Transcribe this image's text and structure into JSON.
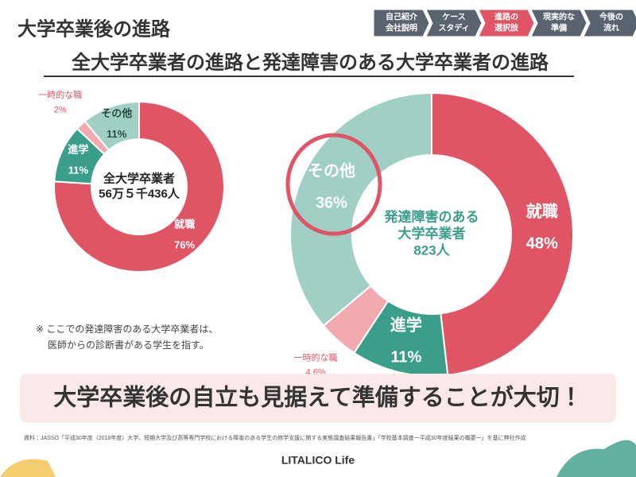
{
  "header": {
    "title": "大学卒業後の進路",
    "nav": [
      [
        "自己紹介",
        "会社説明"
      ],
      [
        "ケース",
        "スタディ"
      ],
      [
        "進路の",
        "選択肢"
      ],
      [
        "現実的な",
        "準備"
      ],
      [
        "今後の",
        "流れ"
      ]
    ],
    "nav_active": 2
  },
  "subtitle": "全大学卒業者の進路と発達障害のある大学卒業者の進路",
  "chart_data": [
    {
      "type": "pie",
      "donut": true,
      "center_label": [
        "全大学卒業者",
        "56万５千436人"
      ],
      "categories": [
        "就職",
        "進学",
        "一時的な職",
        "その他"
      ],
      "values": [
        76,
        11,
        2,
        11
      ],
      "value_labels": [
        "76%",
        "11%",
        "2%",
        "11%"
      ],
      "colors": [
        "#e05565",
        "#3a9e8a",
        "#f2a9b0",
        "#9fcfc5"
      ]
    },
    {
      "type": "pie",
      "donut": true,
      "center_label": [
        "発達障害のある",
        "大学卒業者",
        "823人"
      ],
      "categories": [
        "就職",
        "進学",
        "一時的な職",
        "その他"
      ],
      "values": [
        48,
        11,
        4.6,
        36
      ],
      "value_labels": [
        "48%",
        "11%",
        "4.6%",
        "36%"
      ],
      "colors": [
        "#e05565",
        "#3a9e8a",
        "#f2a9b0",
        "#9fcfc5"
      ]
    }
  ],
  "note": [
    "※ ここでの発達障害のある大学卒業者は、",
    "医師からの診断書がある学生を指す。"
  ],
  "banner": "大学卒業後の自立も見据えて準備することが大切！",
  "source": "資料：JASSO「平成30年度（2018年度）大学、短期大学及び高等専門学校における障害のある学生の修学支援に関する実態調査結果報告書」「学校基本調査ー平成30年度結果の概要ー」を基に弊社作成",
  "logo": "LITALICO Life"
}
